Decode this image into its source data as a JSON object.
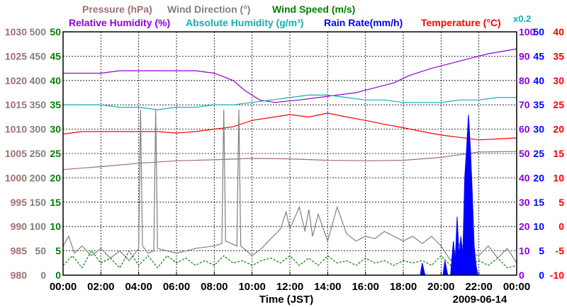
{
  "chart_data": {
    "type": "line",
    "x_axis": {
      "label": "Time (JST)",
      "ticks": [
        "00:00",
        "02:00",
        "04:00",
        "06:00",
        "08:00",
        "10:00",
        "12:00",
        "14:00",
        "16:00",
        "18:00",
        "20:00",
        "22:00",
        "00:00"
      ],
      "date_label": "2009-06-14",
      "range_hours": [
        0,
        24
      ]
    },
    "legend": [
      {
        "label": "Pressure (hPa)",
        "color": "#a07070"
      },
      {
        "label": "Wind Direction (°)",
        "color": "#808080"
      },
      {
        "label": "Wind Speed (m/s)",
        "color": "#008000"
      },
      {
        "label": "Relative Humidity (%)",
        "color": "#9000d8"
      },
      {
        "label": "Absolute Humidity (g/m³)",
        "color": "#10b0b0"
      },
      {
        "label": "Rain Rate(mm/h)",
        "color": "#0000ff"
      },
      {
        "label": "Temperature (°C)",
        "color": "#ff0000"
      }
    ],
    "abs_humidity_scale_note": "x0.2",
    "left_axes": [
      {
        "name": "pressure",
        "color": "#a07070",
        "ticks": [
          "1030",
          "1025",
          "1020",
          "1015",
          "1010",
          "1005",
          "1000",
          "995",
          "990",
          "985",
          "980"
        ]
      },
      {
        "name": "wind-direction",
        "color": "#808080",
        "ticks": [
          "500",
          "450",
          "400",
          "350",
          "300",
          "250",
          "200",
          "150",
          "100",
          "50",
          "0"
        ]
      },
      {
        "name": "wind-speed",
        "color": "#008000",
        "ticks": [
          "50",
          "45",
          "40",
          "35",
          "30",
          "25",
          "20",
          "15",
          "10",
          "5",
          "0"
        ]
      }
    ],
    "right_axes": [
      {
        "name": "relative-humidity",
        "color": "#9000d8",
        "ticks": [
          "100",
          "90",
          "80",
          "70",
          "60",
          "50",
          "40",
          "30",
          "20",
          "10",
          "0"
        ]
      },
      {
        "name": "rain-rate",
        "color": "#0000ff",
        "ticks": [
          "50",
          "45",
          "40",
          "35",
          "30",
          "25",
          "20",
          "15",
          "10",
          "5",
          "0"
        ]
      },
      {
        "name": "temperature",
        "color": "#ff0000",
        "ticks": [
          "40",
          "35",
          "30",
          "25",
          "20",
          "15",
          "10",
          "5",
          "0",
          "-5",
          "-10"
        ]
      }
    ],
    "series": [
      {
        "name": "Relative Humidity (%)",
        "color": "#9000d8",
        "axis_range": [
          0,
          100
        ],
        "points": [
          [
            0,
            83
          ],
          [
            2,
            83
          ],
          [
            3,
            84
          ],
          [
            7,
            84
          ],
          [
            8,
            83
          ],
          [
            9,
            80
          ],
          [
            9.6,
            76
          ],
          [
            10.4,
            72
          ],
          [
            11.2,
            71
          ],
          [
            12.5,
            72
          ],
          [
            13.5,
            73
          ],
          [
            14.5,
            74
          ],
          [
            15.5,
            75
          ],
          [
            16.5,
            77
          ],
          [
            17.5,
            79
          ],
          [
            18.3,
            82
          ],
          [
            19.5,
            85
          ],
          [
            20.5,
            87
          ],
          [
            21.5,
            89
          ],
          [
            22.5,
            91
          ],
          [
            24,
            93
          ]
        ]
      },
      {
        "name": "Absolute Humidity (g/m³) x0.2",
        "color": "#10b0b0",
        "axis_range": [
          0,
          100
        ],
        "points": [
          [
            0,
            70
          ],
          [
            2,
            70
          ],
          [
            3,
            69
          ],
          [
            4,
            69
          ],
          [
            5,
            68
          ],
          [
            6,
            69
          ],
          [
            7,
            69
          ],
          [
            8,
            70
          ],
          [
            9,
            70
          ],
          [
            10,
            71
          ],
          [
            11,
            72
          ],
          [
            12,
            73
          ],
          [
            13,
            74
          ],
          [
            14,
            74
          ],
          [
            15,
            73
          ],
          [
            16,
            72
          ],
          [
            17,
            72
          ],
          [
            18,
            71
          ],
          [
            19,
            71
          ],
          [
            20,
            71
          ],
          [
            21,
            72
          ],
          [
            22,
            72
          ],
          [
            23,
            73
          ],
          [
            24,
            73
          ]
        ]
      },
      {
        "name": "Temperature (°C)",
        "color": "#ff0000",
        "axis_range": [
          -10,
          40
        ],
        "points": [
          [
            0,
            19
          ],
          [
            1,
            19.5
          ],
          [
            3,
            19.5
          ],
          [
            5,
            19.5
          ],
          [
            6,
            19.2
          ],
          [
            7,
            19.5
          ],
          [
            8,
            20
          ],
          [
            9,
            20.5
          ],
          [
            10,
            21.8
          ],
          [
            11,
            22.4
          ],
          [
            12,
            23
          ],
          [
            13,
            22.5
          ],
          [
            14,
            23.3
          ],
          [
            15,
            22.5
          ],
          [
            16,
            21.8
          ],
          [
            17,
            21
          ],
          [
            18,
            20.3
          ],
          [
            19,
            19.5
          ],
          [
            20,
            18.8
          ],
          [
            21,
            18.3
          ],
          [
            22,
            17.8
          ],
          [
            23,
            18
          ],
          [
            24,
            18.2
          ]
        ]
      },
      {
        "name": "Pressure (hPa)",
        "color": "#a07070",
        "axis_range": [
          980,
          1030
        ],
        "points": [
          [
            0,
            1001.7
          ],
          [
            2,
            1002.3
          ],
          [
            4,
            1003
          ],
          [
            6,
            1003.5
          ],
          [
            8,
            1003.7
          ],
          [
            10,
            1004
          ],
          [
            12,
            1003.9
          ],
          [
            14,
            1003.6
          ],
          [
            16,
            1003.5
          ],
          [
            18,
            1003.6
          ],
          [
            20,
            1004.2
          ],
          [
            22,
            1005.3
          ],
          [
            24,
            1005.4
          ]
        ]
      },
      {
        "name": "Wind Direction (°)",
        "color": "#808080",
        "axis_range": [
          0,
          500
        ],
        "points": [
          [
            0,
            60
          ],
          [
            0.3,
            80
          ],
          [
            0.6,
            45
          ],
          [
            1,
            60
          ],
          [
            1.5,
            40
          ],
          [
            2,
            55
          ],
          [
            2.5,
            35
          ],
          [
            3,
            50
          ],
          [
            3.5,
            30
          ],
          [
            4,
            55
          ],
          [
            4.1,
            340
          ],
          [
            4.2,
            60
          ],
          [
            4.5,
            45
          ],
          [
            4.8,
            50
          ],
          [
            4.9,
            340
          ],
          [
            5,
            55
          ],
          [
            6,
            45
          ],
          [
            7,
            55
          ],
          [
            8,
            60
          ],
          [
            8.4,
            65
          ],
          [
            8.5,
            340
          ],
          [
            8.6,
            70
          ],
          [
            9.2,
            60
          ],
          [
            9.3,
            340
          ],
          [
            9.4,
            60
          ],
          [
            10,
            40
          ],
          [
            10.5,
            55
          ],
          [
            11,
            75
          ],
          [
            11.5,
            95
          ],
          [
            11.8,
            130
          ],
          [
            12,
            95
          ],
          [
            12.5,
            140
          ],
          [
            12.8,
            90
          ],
          [
            13,
            135
          ],
          [
            13.2,
            80
          ],
          [
            13.5,
            125
          ],
          [
            14,
            70
          ],
          [
            14.5,
            140
          ],
          [
            15,
            85
          ],
          [
            15.5,
            70
          ],
          [
            16,
            80
          ],
          [
            16.5,
            75
          ],
          [
            17,
            90
          ],
          [
            17.5,
            80
          ],
          [
            18,
            70
          ],
          [
            18.5,
            80
          ],
          [
            19,
            65
          ],
          [
            19.5,
            80
          ],
          [
            20,
            60
          ],
          [
            20.5,
            30
          ],
          [
            21,
            65
          ],
          [
            21.5,
            45
          ],
          [
            22,
            40
          ],
          [
            22.5,
            60
          ],
          [
            23,
            35
          ],
          [
            23.5,
            55
          ],
          [
            24,
            25
          ]
        ]
      },
      {
        "name": "Wind Speed (m/s)",
        "color": "#008000",
        "axis_range": [
          0,
          50
        ],
        "points": [
          [
            0,
            2
          ],
          [
            0.5,
            4
          ],
          [
            1,
            1.5
          ],
          [
            1.5,
            5
          ],
          [
            2,
            2.5
          ],
          [
            2.5,
            3.5
          ],
          [
            3,
            1.5
          ],
          [
            3.5,
            5
          ],
          [
            4,
            2
          ],
          [
            4.5,
            4
          ],
          [
            5,
            1.5
          ],
          [
            5.5,
            4
          ],
          [
            6,
            2.5
          ],
          [
            6.5,
            3.5
          ],
          [
            7,
            2
          ],
          [
            7.5,
            3
          ],
          [
            8,
            2
          ],
          [
            8.5,
            4
          ],
          [
            9,
            2.5
          ],
          [
            9.5,
            3
          ],
          [
            10,
            2
          ],
          [
            10.5,
            3
          ],
          [
            11,
            3.5
          ],
          [
            11.5,
            2.5
          ],
          [
            12,
            4
          ],
          [
            12.5,
            2
          ],
          [
            13,
            3.5
          ],
          [
            13.5,
            2
          ],
          [
            14,
            4
          ],
          [
            14.5,
            2.5
          ],
          [
            15,
            3
          ],
          [
            15.5,
            2
          ],
          [
            16,
            3.5
          ],
          [
            16.5,
            2.5
          ],
          [
            17,
            3
          ],
          [
            17.5,
            2
          ],
          [
            18,
            3
          ],
          [
            18.5,
            2.5
          ],
          [
            19,
            3
          ],
          [
            19.5,
            2
          ],
          [
            20,
            4
          ],
          [
            20.5,
            2
          ],
          [
            21,
            5
          ],
          [
            21.5,
            2
          ],
          [
            22,
            3
          ],
          [
            22.5,
            2
          ],
          [
            23,
            3.5
          ],
          [
            23.5,
            1.5
          ],
          [
            24,
            2
          ]
        ]
      },
      {
        "name": "Rain Rate(mm/h)",
        "color": "#0000ff",
        "axis_range": [
          0,
          50
        ],
        "fill": true,
        "points": [
          [
            18.9,
            0
          ],
          [
            19.0,
            2.5
          ],
          [
            19.15,
            0
          ],
          [
            20.1,
            0
          ],
          [
            20.2,
            3
          ],
          [
            20.35,
            0
          ],
          [
            20.5,
            0
          ],
          [
            20.65,
            7
          ],
          [
            20.75,
            3
          ],
          [
            20.85,
            12
          ],
          [
            20.95,
            4
          ],
          [
            21.05,
            8
          ],
          [
            21.15,
            4
          ],
          [
            21.25,
            20
          ],
          [
            21.35,
            26
          ],
          [
            21.45,
            33
          ],
          [
            21.55,
            26
          ],
          [
            21.65,
            17
          ],
          [
            21.75,
            6
          ],
          [
            21.85,
            2
          ],
          [
            21.95,
            0
          ]
        ]
      }
    ]
  }
}
